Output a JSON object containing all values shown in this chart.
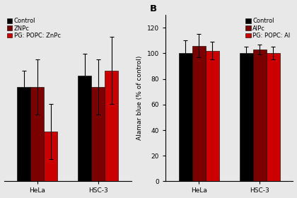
{
  "panel_A": {
    "title": "",
    "groups": [
      "HeLa",
      "HSC-3"
    ],
    "series": [
      "Control",
      "ZNPc",
      "PG: POPC: ZnPc"
    ],
    "colors": [
      "#000000",
      "#7B0000",
      "#CC0000"
    ],
    "values": {
      "HeLa": [
        104,
        104,
        96
      ],
      "HSC-3": [
        106,
        104,
        107
      ]
    },
    "errors": {
      "HeLa": [
        3,
        5,
        5
      ],
      "HSC-3": [
        4,
        5,
        6
      ]
    },
    "ylim": [
      87,
      117
    ],
    "yticks": [],
    "show_yaxis": false,
    "legend_loc": "upper left"
  },
  "panel_B": {
    "title": "B",
    "groups": [
      "HeLa",
      "HSC-3"
    ],
    "series": [
      "Control",
      "AlPc",
      "PG: POPC: Al"
    ],
    "colors": [
      "#000000",
      "#7B0000",
      "#CC0000"
    ],
    "values": {
      "HeLa": [
        100,
        106,
        102
      ],
      "HSC-3": [
        100,
        103,
        100
      ]
    },
    "errors": {
      "HeLa": [
        10,
        9,
        7
      ],
      "HSC-3": [
        5,
        4,
        5
      ]
    },
    "ylim": [
      0,
      130
    ],
    "yticks": [
      0,
      20,
      40,
      60,
      80,
      100,
      120
    ],
    "ylabel": "Alamar blue (% of control)",
    "show_yaxis": true,
    "legend_loc": "upper right"
  },
  "bar_width": 0.22,
  "background_color": "#e8e8e8",
  "fontsize": 6.5
}
